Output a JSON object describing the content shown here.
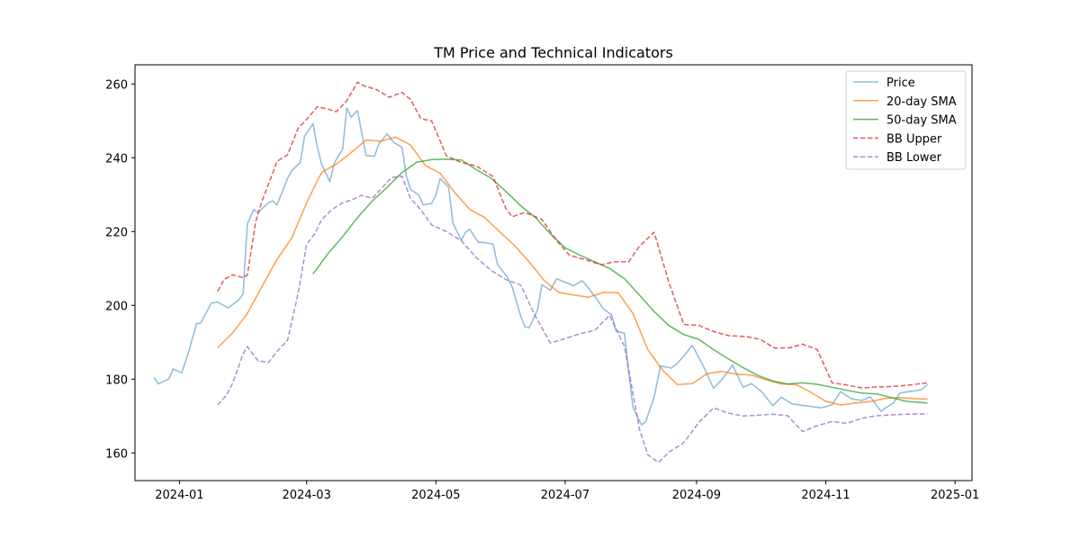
{
  "chart_data": {
    "type": "line",
    "title": "TM Price and Technical Indicators",
    "xlabel": "",
    "ylabel": "",
    "x_axis": {
      "type": "date",
      "range": [
        "2023-12-11",
        "2025-01-09"
      ],
      "ticks": [
        "2024-01-01",
        "2024-03-01",
        "2024-05-01",
        "2024-07-01",
        "2024-09-01",
        "2024-11-01",
        "2025-01-01"
      ],
      "tick_labels": [
        "2024-01",
        "2024-03",
        "2024-05",
        "2024-07",
        "2024-09",
        "2024-11",
        "2025-01"
      ]
    },
    "y_axis": {
      "range": [
        152.5,
        265.2
      ],
      "ticks": [
        160,
        180,
        200,
        220,
        240,
        260
      ],
      "tick_labels": [
        "160",
        "180",
        "200",
        "220",
        "240",
        "260"
      ]
    },
    "grid": false,
    "legend": {
      "placement": "top-right",
      "entries": [
        "Price",
        "20-day SMA",
        "50-day SMA",
        "BB Upper",
        "BB Lower"
      ]
    },
    "series": [
      {
        "name": "Price",
        "color": "#1f77b4",
        "style": "solid",
        "x": [
          "2023-12-20",
          "2023-12-22",
          "2023-12-27",
          "2023-12-29",
          "2024-01-02",
          "2024-01-05",
          "2024-01-09",
          "2024-01-11",
          "2024-01-16",
          "2024-01-19",
          "2024-01-24",
          "2024-01-29",
          "2024-01-31",
          "2024-02-02",
          "2024-02-05",
          "2024-02-07",
          "2024-02-12",
          "2024-02-14",
          "2024-02-16",
          "2024-02-21",
          "2024-02-23",
          "2024-02-27",
          "2024-02-29",
          "2024-03-04",
          "2024-03-06",
          "2024-03-08",
          "2024-03-12",
          "2024-03-14",
          "2024-03-18",
          "2024-03-20",
          "2024-03-22",
          "2024-03-25",
          "2024-03-27",
          "2024-03-29",
          "2024-04-02",
          "2024-04-04",
          "2024-04-08",
          "2024-04-11",
          "2024-04-15",
          "2024-04-17",
          "2024-04-19",
          "2024-04-23",
          "2024-04-25",
          "2024-04-29",
          "2024-05-01",
          "2024-05-03",
          "2024-05-07",
          "2024-05-09",
          "2024-05-13",
          "2024-05-15",
          "2024-05-17",
          "2024-05-21",
          "2024-05-23",
          "2024-05-28",
          "2024-05-30",
          "2024-06-04",
          "2024-06-06",
          "2024-06-10",
          "2024-06-12",
          "2024-06-14",
          "2024-06-18",
          "2024-06-20",
          "2024-06-24",
          "2024-06-27",
          "2024-07-01",
          "2024-07-05",
          "2024-07-09",
          "2024-07-12",
          "2024-07-16",
          "2024-07-19",
          "2024-07-23",
          "2024-07-25",
          "2024-07-29",
          "2024-07-31",
          "2024-08-02",
          "2024-08-06",
          "2024-08-08",
          "2024-08-12",
          "2024-08-15",
          "2024-08-20",
          "2024-08-23",
          "2024-08-27",
          "2024-08-30",
          "2024-09-04",
          "2024-09-09",
          "2024-09-13",
          "2024-09-18",
          "2024-09-23",
          "2024-09-27",
          "2024-10-02",
          "2024-10-07",
          "2024-10-11",
          "2024-10-16",
          "2024-10-21",
          "2024-10-25",
          "2024-10-30",
          "2024-11-04",
          "2024-11-08",
          "2024-11-13",
          "2024-11-18",
          "2024-11-22",
          "2024-11-27",
          "2024-12-03",
          "2024-12-06",
          "2024-12-11",
          "2024-12-16",
          "2024-12-19"
        ],
        "values": [
          180.5,
          178.7,
          180.1,
          182.8,
          181.7,
          186.8,
          195.0,
          195.2,
          200.6,
          200.9,
          199.3,
          201.5,
          203.1,
          222.0,
          226.0,
          225.2,
          227.8,
          228.3,
          227.2,
          234.4,
          236.5,
          238.7,
          245.8,
          249.3,
          243.0,
          238.4,
          233.5,
          238.5,
          242.4,
          253.5,
          251.0,
          252.8,
          246.8,
          240.6,
          240.4,
          243.7,
          246.5,
          244.2,
          242.8,
          235.2,
          231.4,
          229.9,
          227.2,
          227.6,
          229.9,
          234.4,
          232.0,
          222.3,
          217.6,
          219.8,
          220.6,
          217.1,
          217.1,
          216.6,
          211.2,
          207.4,
          205.0,
          197.2,
          194.2,
          193.9,
          198.8,
          205.6,
          204.1,
          207.2,
          206.3,
          205.3,
          206.7,
          204.7,
          201.6,
          199.1,
          197.4,
          193.1,
          192.4,
          181.8,
          172.3,
          167.6,
          168.4,
          175.1,
          183.6,
          183.0,
          184.3,
          187.0,
          189.2,
          183.8,
          177.5,
          179.9,
          183.8,
          177.8,
          178.8,
          176.4,
          172.8,
          175.1,
          173.3,
          172.9,
          172.6,
          172.2,
          173.1,
          176.6,
          174.7,
          174.2,
          175.2,
          171.3,
          173.6,
          176.2,
          176.7,
          177.1,
          178.5
        ]
      },
      {
        "name": "20-day SMA",
        "color": "#ff7f0e",
        "style": "solid",
        "x": [
          "2024-01-19",
          "2024-01-26",
          "2024-02-02",
          "2024-02-09",
          "2024-02-16",
          "2024-02-23",
          "2024-03-01",
          "2024-03-08",
          "2024-03-15",
          "2024-03-22",
          "2024-03-29",
          "2024-04-05",
          "2024-04-12",
          "2024-04-19",
          "2024-04-26",
          "2024-05-03",
          "2024-05-10",
          "2024-05-17",
          "2024-05-24",
          "2024-05-31",
          "2024-06-07",
          "2024-06-14",
          "2024-06-21",
          "2024-06-28",
          "2024-07-05",
          "2024-07-12",
          "2024-07-19",
          "2024-07-26",
          "2024-08-02",
          "2024-08-09",
          "2024-08-16",
          "2024-08-23",
          "2024-08-30",
          "2024-09-06",
          "2024-09-13",
          "2024-09-20",
          "2024-09-27",
          "2024-10-04",
          "2024-10-11",
          "2024-10-18",
          "2024-10-25",
          "2024-11-01",
          "2024-11-08",
          "2024-11-15",
          "2024-11-22",
          "2024-11-29",
          "2024-12-06",
          "2024-12-13",
          "2024-12-19"
        ],
        "values": [
          188.5,
          192.5,
          197.8,
          205.2,
          212.4,
          218.3,
          227.8,
          236.0,
          238.3,
          241.4,
          244.8,
          244.5,
          245.6,
          243.5,
          237.9,
          235.8,
          230.5,
          226.0,
          223.8,
          220.0,
          216.3,
          211.8,
          206.8,
          203.5,
          202.8,
          202.2,
          203.5,
          203.4,
          197.8,
          188.0,
          182.4,
          178.5,
          178.8,
          181.5,
          182.1,
          181.3,
          181.1,
          179.8,
          178.7,
          178.5,
          176.4,
          174.0,
          173.0,
          173.5,
          173.9,
          174.8,
          175.0,
          174.7,
          174.6
        ]
      },
      {
        "name": "50-day SMA",
        "color": "#2ca02c",
        "style": "solid",
        "x": [
          "2024-03-04",
          "2024-03-11",
          "2024-03-18",
          "2024-03-25",
          "2024-04-01",
          "2024-04-08",
          "2024-04-15",
          "2024-04-22",
          "2024-04-29",
          "2024-05-06",
          "2024-05-13",
          "2024-05-20",
          "2024-05-27",
          "2024-06-03",
          "2024-06-10",
          "2024-06-17",
          "2024-06-24",
          "2024-07-01",
          "2024-07-08",
          "2024-07-15",
          "2024-07-22",
          "2024-07-29",
          "2024-08-05",
          "2024-08-12",
          "2024-08-19",
          "2024-08-26",
          "2024-09-02",
          "2024-09-09",
          "2024-09-16",
          "2024-09-23",
          "2024-09-30",
          "2024-10-07",
          "2024-10-14",
          "2024-10-21",
          "2024-10-28",
          "2024-11-04",
          "2024-11-11",
          "2024-11-18",
          "2024-11-25",
          "2024-12-02",
          "2024-12-09",
          "2024-12-19"
        ],
        "values": [
          208.5,
          214.0,
          218.6,
          223.8,
          228.3,
          232.0,
          236.0,
          238.8,
          239.5,
          239.6,
          239.4,
          236.8,
          234.5,
          230.9,
          227.0,
          223.8,
          219.4,
          215.6,
          213.6,
          211.8,
          210.0,
          207.2,
          202.8,
          198.3,
          194.5,
          192.1,
          190.8,
          188.0,
          185.5,
          183.1,
          181.0,
          179.5,
          178.7,
          179.0,
          178.6,
          177.8,
          177.0,
          176.2,
          176.0,
          175.0,
          174.0,
          173.5
        ]
      },
      {
        "name": "BB Upper",
        "color": "#d62728",
        "style": "dashed",
        "x": [
          "2024-01-19",
          "2024-01-22",
          "2024-01-26",
          "2024-01-31",
          "2024-02-02",
          "2024-02-06",
          "2024-02-09",
          "2024-02-14",
          "2024-02-16",
          "2024-02-21",
          "2024-02-26",
          "2024-03-01",
          "2024-03-06",
          "2024-03-11",
          "2024-03-15",
          "2024-03-20",
          "2024-03-25",
          "2024-03-28",
          "2024-04-03",
          "2024-04-09",
          "2024-04-15",
          "2024-04-19",
          "2024-04-24",
          "2024-04-29",
          "2024-05-06",
          "2024-05-13",
          "2024-05-20",
          "2024-05-28",
          "2024-06-03",
          "2024-06-06",
          "2024-06-12",
          "2024-06-20",
          "2024-06-27",
          "2024-07-03",
          "2024-07-11",
          "2024-07-18",
          "2024-07-24",
          "2024-07-31",
          "2024-08-05",
          "2024-08-12",
          "2024-08-19",
          "2024-08-26",
          "2024-09-02",
          "2024-09-09",
          "2024-09-16",
          "2024-09-25",
          "2024-10-01",
          "2024-10-08",
          "2024-10-15",
          "2024-10-21",
          "2024-10-28",
          "2024-11-04",
          "2024-11-11",
          "2024-11-18",
          "2024-11-25",
          "2024-12-02",
          "2024-12-09",
          "2024-12-19"
        ],
        "values": [
          203.8,
          207.0,
          208.3,
          207.5,
          208.2,
          222.8,
          228.4,
          235.8,
          239.0,
          240.8,
          248.0,
          250.4,
          253.8,
          253.2,
          252.5,
          255.5,
          260.5,
          259.5,
          258.5,
          256.4,
          257.7,
          255.8,
          250.6,
          250.0,
          240.5,
          238.7,
          237.8,
          234.9,
          226.3,
          224.0,
          225.2,
          223.3,
          217.5,
          213.6,
          212.3,
          211.0,
          211.8,
          211.8,
          216.0,
          219.8,
          206.2,
          194.8,
          194.6,
          192.9,
          191.8,
          191.5,
          190.8,
          188.4,
          188.5,
          189.5,
          188.0,
          179.0,
          178.4,
          177.6,
          177.9,
          178.0,
          178.3,
          179.0
        ]
      },
      {
        "name": "BB Lower",
        "color": "#9467bd",
        "style": "dashed",
        "x": [
          "2024-01-19",
          "2024-01-23",
          "2024-01-26",
          "2024-01-31",
          "2024-02-02",
          "2024-02-07",
          "2024-02-12",
          "2024-02-16",
          "2024-02-21",
          "2024-02-26",
          "2024-03-01",
          "2024-03-05",
          "2024-03-08",
          "2024-03-13",
          "2024-03-18",
          "2024-03-22",
          "2024-03-27",
          "2024-04-01",
          "2024-04-05",
          "2024-04-10",
          "2024-04-15",
          "2024-04-19",
          "2024-04-24",
          "2024-04-29",
          "2024-05-06",
          "2024-05-13",
          "2024-05-20",
          "2024-05-27",
          "2024-06-03",
          "2024-06-10",
          "2024-06-17",
          "2024-06-24",
          "2024-07-01",
          "2024-07-08",
          "2024-07-15",
          "2024-07-22",
          "2024-07-29",
          "2024-08-05",
          "2024-08-09",
          "2024-08-14",
          "2024-08-19",
          "2024-08-26",
          "2024-09-02",
          "2024-09-09",
          "2024-09-16",
          "2024-09-23",
          "2024-09-30",
          "2024-10-07",
          "2024-10-14",
          "2024-10-21",
          "2024-10-28",
          "2024-11-04",
          "2024-11-11",
          "2024-11-18",
          "2024-11-25",
          "2024-12-02",
          "2024-12-09",
          "2024-12-19"
        ],
        "values": [
          173.0,
          175.5,
          178.8,
          186.8,
          188.8,
          185.0,
          184.5,
          187.5,
          190.5,
          203.3,
          216.5,
          219.5,
          223.2,
          226.0,
          227.8,
          228.5,
          229.8,
          229.0,
          231.5,
          234.6,
          235.0,
          229.0,
          225.8,
          221.8,
          220.0,
          217.5,
          213.0,
          209.5,
          207.0,
          205.5,
          197.0,
          189.8,
          191.0,
          192.3,
          193.2,
          197.3,
          188.8,
          166.5,
          159.5,
          157.4,
          160.2,
          162.8,
          168.2,
          172.2,
          170.8,
          170.0,
          170.2,
          170.5,
          170.1,
          165.8,
          167.4,
          168.5,
          168.0,
          169.4,
          170.1,
          170.3,
          170.5,
          170.6
        ]
      }
    ]
  }
}
